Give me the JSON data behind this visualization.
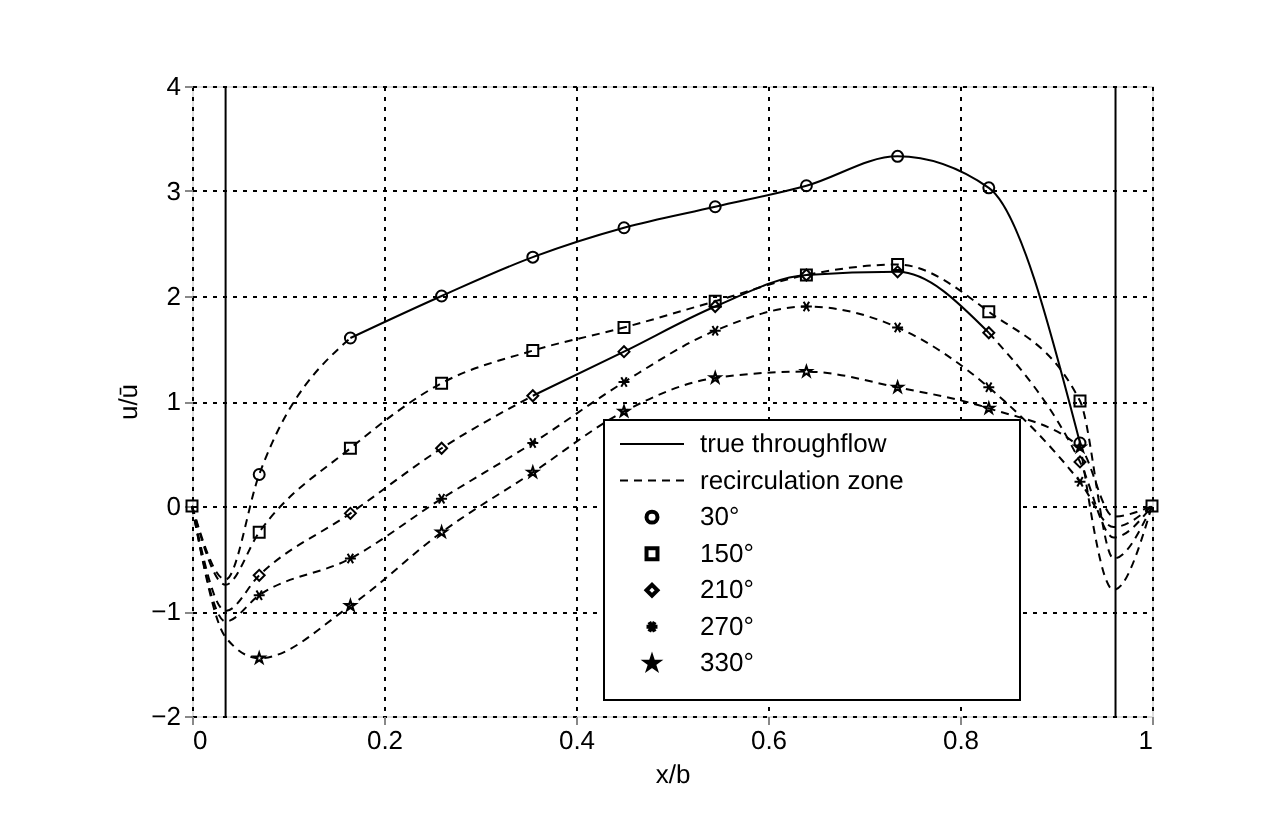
{
  "chart_data": {
    "type": "line",
    "xlabel": "x/b",
    "ylabel": "u/ū",
    "xlim": [
      0,
      1
    ],
    "ylim": [
      -2,
      4
    ],
    "xticks": [
      {
        "value": 0,
        "label": "0"
      },
      0.2,
      0.4,
      0.6,
      0.8,
      {
        "value": 1,
        "label": "1"
      }
    ],
    "yticks": [
      -2,
      -1,
      0,
      1,
      2,
      3,
      4
    ],
    "grid": true,
    "legend": "bottom right",
    "ref_lines": [
      {
        "axis": "x",
        "value": 0.035,
        "color": "#000000",
        "line_style": "solid"
      },
      {
        "axis": "x",
        "value": 0.962,
        "color": "#000000",
        "line_style": "solid"
      }
    ],
    "series": [
      {
        "name": "true throughflow",
        "line_style": "solid",
        "color": "#000000",
        "x": [
          0.165,
          0.26,
          0.355,
          0.45,
          0.545,
          0.64,
          0.735,
          0.83,
          0.925
        ],
        "values": [
          1.6,
          2.0,
          2.37,
          2.65,
          2.85,
          3.05,
          3.33,
          3.03,
          0.6
        ]
      },
      {
        "name": "recirculation zone",
        "line_style": "dashed",
        "color": "#000000",
        "x": [
          0,
          0.035,
          0.07,
          0.165,
          0.26,
          0.355,
          0.45,
          0.545,
          0.64,
          0.735,
          0.83,
          0.925,
          0.96,
          1
        ],
        "values": [
          0,
          -0.75,
          -0.25,
          0.55,
          1.17,
          1.48,
          1.7,
          1.95,
          2.2,
          2.3,
          1.85,
          1.0,
          -0.5,
          0
        ]
      },
      {
        "line_style": "dashed",
        "color": "#000000",
        "x": [
          0,
          0.035,
          0.07,
          0.165
        ],
        "values": [
          0,
          -0.7,
          0.3,
          1.6
        ]
      },
      {
        "line_style": "dashed",
        "color": "#000000",
        "x": [
          0.925,
          0.96,
          1
        ],
        "values": [
          0.6,
          -0.8,
          0
        ]
      },
      {
        "line_style": "dashed",
        "color": "#000000",
        "x": [
          0,
          0.035,
          0.07,
          0.165,
          0.26,
          0.355
        ],
        "values": [
          0,
          -1.0,
          -0.66,
          -0.07,
          0.55,
          1.05
        ]
      },
      {
        "line_style": "solid",
        "color": "#000000",
        "x": [
          0.355,
          0.45,
          0.545,
          0.64,
          0.735,
          0.83
        ],
        "values": [
          1.05,
          1.47,
          1.9,
          2.2,
          2.23,
          1.65
        ]
      },
      {
        "line_style": "dashed",
        "color": "#000000",
        "x": [
          0.83,
          0.925,
          0.96,
          1
        ],
        "values": [
          1.65,
          0.42,
          -0.3,
          0
        ]
      },
      {
        "line_style": "dashed",
        "color": "#000000",
        "x": [
          0,
          0.035,
          0.07,
          0.165,
          0.26,
          0.355,
          0.45,
          0.545,
          0.64,
          0.735,
          0.83,
          0.925,
          0.96,
          1
        ],
        "values": [
          0,
          -1.1,
          -0.85,
          -0.5,
          0.07,
          0.6,
          1.18,
          1.67,
          1.9,
          1.7,
          1.13,
          0.23,
          -0.2,
          0
        ]
      },
      {
        "line_style": "dashed",
        "color": "#000000",
        "x": [
          0,
          0.035,
          0.07,
          0.165,
          0.26,
          0.355,
          0.45,
          0.545,
          0.64,
          0.735,
          0.83,
          0.925,
          0.96,
          1
        ],
        "values": [
          0,
          -1.25,
          -1.45,
          -0.95,
          -0.25,
          0.32,
          0.9,
          1.22,
          1.28,
          1.13,
          0.93,
          0.56,
          -0.1,
          0
        ]
      },
      {
        "name": " 30°",
        "type": "scatter",
        "marker": "circle",
        "color": "#000000",
        "x": [
          0.07,
          0.165,
          0.26,
          0.355,
          0.45,
          0.545,
          0.64,
          0.735,
          0.83,
          0.925
        ],
        "values": [
          0.3,
          1.6,
          2.0,
          2.37,
          2.65,
          2.85,
          3.05,
          3.33,
          3.03,
          0.6
        ]
      },
      {
        "name": "150°",
        "type": "scatter",
        "marker": "square",
        "color": "#000000",
        "x": [
          0.07,
          0.165,
          0.26,
          0.355,
          0.45,
          0.545,
          0.64,
          0.735,
          0.83,
          0.925
        ],
        "values": [
          -0.25,
          0.55,
          1.17,
          1.48,
          1.7,
          1.95,
          2.2,
          2.3,
          1.85,
          1.0
        ]
      },
      {
        "name": "210°",
        "type": "scatter",
        "marker": "diamond",
        "color": "#000000",
        "x": [
          0.07,
          0.165,
          0.26,
          0.355,
          0.45,
          0.545,
          0.64,
          0.735,
          0.83,
          0.925
        ],
        "values": [
          -0.66,
          -0.07,
          0.55,
          1.05,
          1.47,
          1.9,
          2.2,
          2.23,
          1.65,
          0.42
        ]
      },
      {
        "name": "270°",
        "type": "scatter",
        "marker": "cross",
        "color": "#000000",
        "x": [
          0.07,
          0.165,
          0.26,
          0.355,
          0.45,
          0.545,
          0.64,
          0.735,
          0.83,
          0.925
        ],
        "values": [
          -0.85,
          -0.5,
          0.07,
          0.6,
          1.18,
          1.67,
          1.9,
          1.7,
          1.13,
          0.23
        ]
      },
      {
        "name": "330°",
        "type": "scatter",
        "marker": "star",
        "color": "#000000",
        "x": [
          0.07,
          0.165,
          0.26,
          0.355,
          0.45,
          0.545,
          0.64,
          0.735,
          0.83,
          0.925
        ],
        "values": [
          -1.45,
          -0.95,
          -0.25,
          0.32,
          0.9,
          1.22,
          1.28,
          1.13,
          0.93,
          0.56
        ]
      },
      {
        "type": "scatter",
        "marker": "square",
        "color": "#000000",
        "x": [
          0,
          1
        ],
        "values": [
          0,
          0
        ]
      }
    ]
  }
}
